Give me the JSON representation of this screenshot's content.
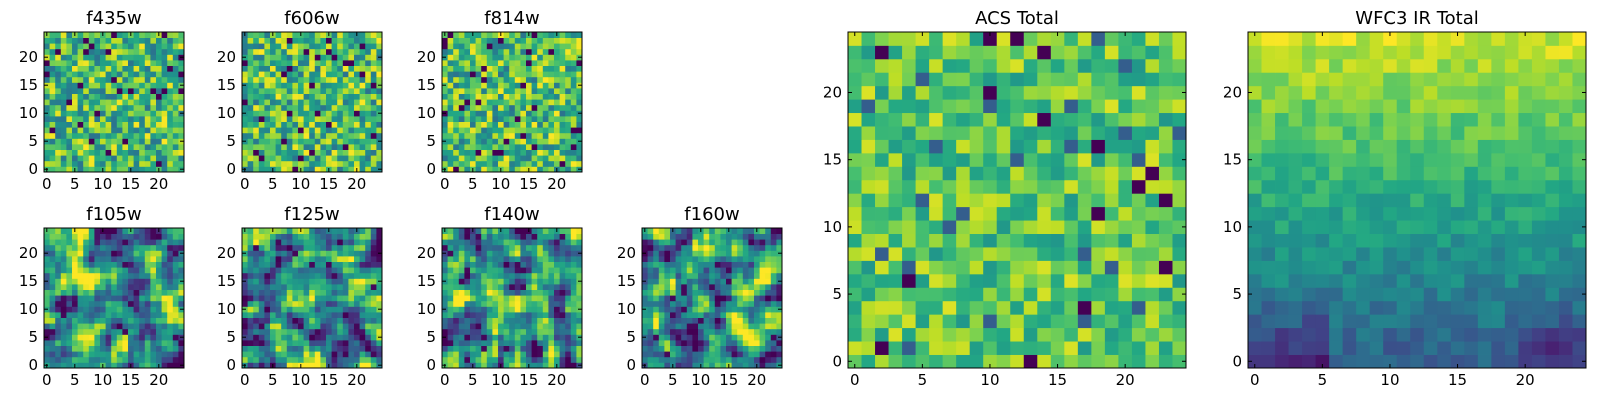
{
  "chart_data": [
    {
      "type": "heatmap",
      "title": "f435w",
      "rows": 25,
      "cols": 25,
      "colormap": "viridis",
      "xticks": [
        "0",
        "5",
        "10",
        "15",
        "20"
      ],
      "yticks": [
        "0",
        "5",
        "10",
        "15",
        "20"
      ],
      "xlim": [
        0,
        24
      ],
      "ylim": [
        0,
        24
      ],
      "pattern": "noise",
      "seed": 11
    },
    {
      "type": "heatmap",
      "title": "f606w",
      "rows": 25,
      "cols": 25,
      "colormap": "viridis",
      "xticks": [
        "0",
        "5",
        "10",
        "15",
        "20"
      ],
      "yticks": [
        "0",
        "5",
        "10",
        "15",
        "20"
      ],
      "xlim": [
        0,
        24
      ],
      "ylim": [
        0,
        24
      ],
      "pattern": "noise",
      "seed": 23
    },
    {
      "type": "heatmap",
      "title": "f814w",
      "rows": 25,
      "cols": 25,
      "colormap": "viridis",
      "xticks": [
        "0",
        "5",
        "10",
        "15",
        "20"
      ],
      "yticks": [
        "0",
        "5",
        "10",
        "15",
        "20"
      ],
      "xlim": [
        0,
        24
      ],
      "ylim": [
        0,
        24
      ],
      "pattern": "noise",
      "seed": 37
    },
    {
      "type": "heatmap",
      "title": "f105w",
      "rows": 25,
      "cols": 25,
      "colormap": "viridis",
      "xticks": [
        "0",
        "5",
        "10",
        "15",
        "20"
      ],
      "yticks": [
        "0",
        "5",
        "10",
        "15",
        "20"
      ],
      "xlim": [
        0,
        24
      ],
      "ylim": [
        0,
        24
      ],
      "pattern": "smooth",
      "seed": 41
    },
    {
      "type": "heatmap",
      "title": "f125w",
      "rows": 25,
      "cols": 25,
      "colormap": "viridis",
      "xticks": [
        "0",
        "5",
        "10",
        "15",
        "20"
      ],
      "yticks": [
        "0",
        "5",
        "10",
        "15",
        "20"
      ],
      "xlim": [
        0,
        24
      ],
      "ylim": [
        0,
        24
      ],
      "pattern": "smooth",
      "seed": 53
    },
    {
      "type": "heatmap",
      "title": "f140w",
      "rows": 25,
      "cols": 25,
      "colormap": "viridis",
      "xticks": [
        "0",
        "5",
        "10",
        "15",
        "20"
      ],
      "yticks": [
        "0",
        "5",
        "10",
        "15",
        "20"
      ],
      "xlim": [
        0,
        24
      ],
      "ylim": [
        0,
        24
      ],
      "pattern": "smooth",
      "seed": 67
    },
    {
      "type": "heatmap",
      "title": "f160w",
      "rows": 25,
      "cols": 25,
      "colormap": "viridis",
      "xticks": [
        "0",
        "5",
        "10",
        "15",
        "20"
      ],
      "yticks": [
        "0",
        "5",
        "10",
        "15",
        "20"
      ],
      "xlim": [
        0,
        24
      ],
      "ylim": [
        0,
        24
      ],
      "pattern": "smooth",
      "seed": 79
    },
    {
      "type": "heatmap",
      "title": "ACS Total",
      "rows": 25,
      "cols": 25,
      "colormap": "viridis",
      "xticks": [
        "0",
        "5",
        "10",
        "15",
        "20"
      ],
      "yticks": [
        "0",
        "5",
        "10",
        "15",
        "20"
      ],
      "xlim": [
        0,
        24
      ],
      "ylim": [
        0,
        24
      ],
      "pattern": "acs",
      "seed": 97
    },
    {
      "type": "heatmap",
      "title": "WFC3 IR Total",
      "rows": 25,
      "cols": 25,
      "colormap": "viridis",
      "xticks": [
        "0",
        "5",
        "10",
        "15",
        "20"
      ],
      "yticks": [
        "0",
        "5",
        "10",
        "15",
        "20"
      ],
      "xlim": [
        0,
        24
      ],
      "ylim": [
        0,
        24
      ],
      "pattern": "wfc3",
      "seed": 113
    }
  ]
}
